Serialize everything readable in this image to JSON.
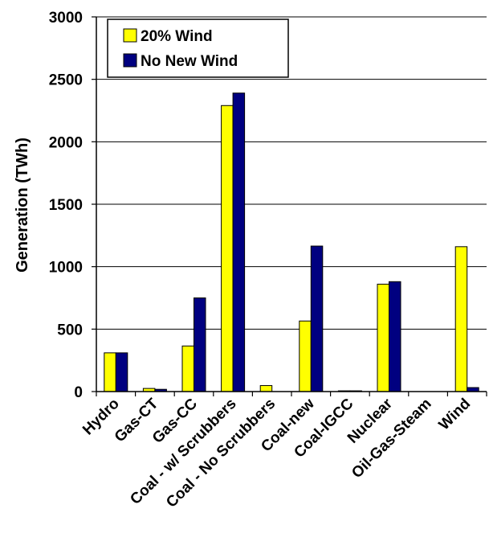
{
  "chart_data": {
    "type": "bar",
    "title": "",
    "xlabel": "",
    "ylabel": "Generation (TWh)",
    "ylim": [
      0,
      3000
    ],
    "yticks": [
      0,
      500,
      1000,
      1500,
      2000,
      2500,
      3000
    ],
    "grid": true,
    "legend_position": "top-left",
    "categories": [
      "Hydro",
      "Gas-CT",
      "Gas-CC",
      "Coal - w/ Scrubbers",
      "Coal - No Scrubbers",
      "Coal-new",
      "Coal-IGCC",
      "Nuclear",
      "Oil-Gas-Steam",
      "Wind"
    ],
    "series": [
      {
        "name": "20% Wind",
        "color": "#FFFF00",
        "values": [
          310,
          25,
          365,
          2290,
          48,
          565,
          6,
          860,
          0,
          1160
        ]
      },
      {
        "name": "No New Wind",
        "color": "#000080",
        "values": [
          310,
          18,
          750,
          2390,
          0,
          1165,
          6,
          880,
          0,
          32
        ]
      }
    ]
  }
}
